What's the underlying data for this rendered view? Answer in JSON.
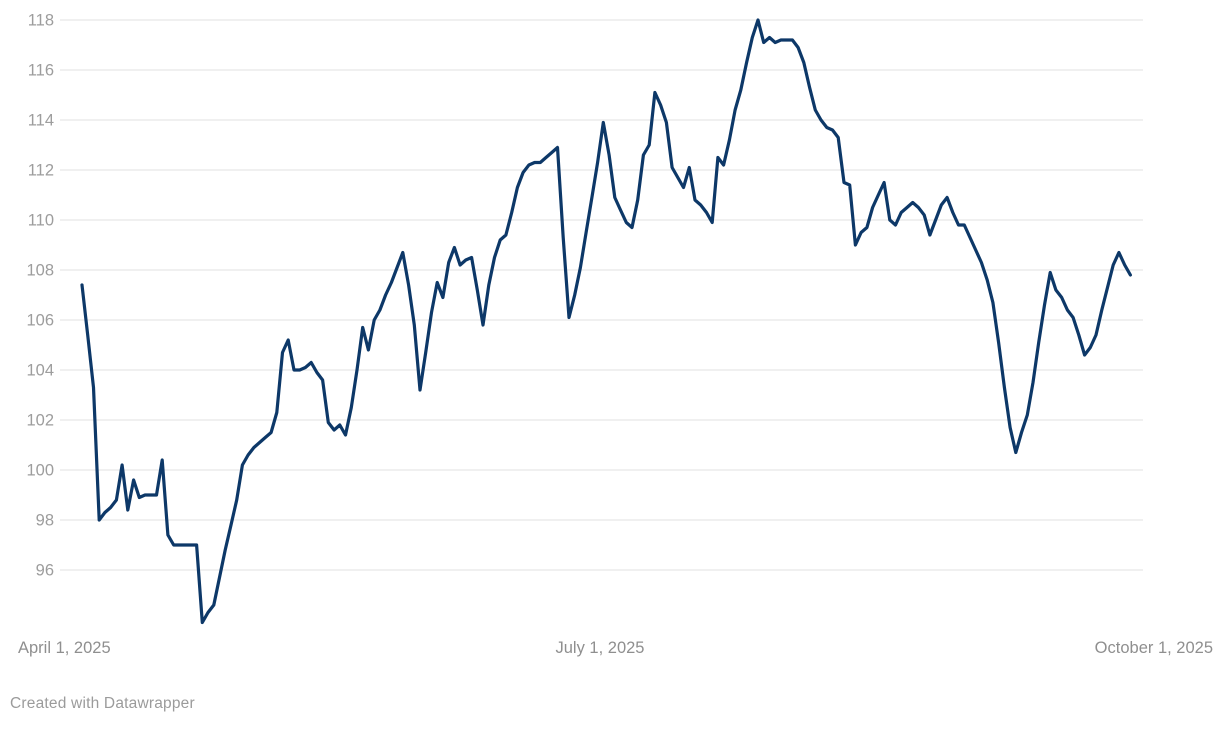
{
  "colors": {
    "line": "#0d3868",
    "grid": "#e7e7e7",
    "y_label": "#9d9d9d",
    "x_label": "#8f8f8f",
    "background": "#ffffff"
  },
  "footer": {
    "credit": "Created with Datawrapper"
  },
  "chart_data": {
    "type": "line",
    "title": "",
    "grid": true,
    "legend": "none",
    "x_axis": {
      "start_date": "2025-04-01",
      "end_date": "2025-10-01",
      "frequency": "daily",
      "tick_labels": [
        "April 1, 2025",
        "July 1, 2025",
        "October 1, 2025"
      ],
      "tick_dates": [
        "2025-04-01",
        "2025-07-01",
        "2025-10-01"
      ]
    },
    "y_axis": {
      "min": 96,
      "max": 118,
      "tick_step": 2,
      "ticks": [
        118,
        116,
        114,
        112,
        110,
        108,
        106,
        104,
        102,
        100,
        98,
        96
      ]
    },
    "series": [
      {
        "name": "index-value",
        "color": "#0d3868",
        "values": [
          107.4,
          105.4,
          103.3,
          98.0,
          98.3,
          98.5,
          98.8,
          100.2,
          98.4,
          99.6,
          98.9,
          99.0,
          99.0,
          99.0,
          100.4,
          97.4,
          97.0,
          97.0,
          97.0,
          97.0,
          97.0,
          93.9,
          94.3,
          94.6,
          95.7,
          96.8,
          97.8,
          98.8,
          100.2,
          100.6,
          100.9,
          101.1,
          101.3,
          101.5,
          102.3,
          104.7,
          105.2,
          104.0,
          104.0,
          104.1,
          104.3,
          103.9,
          103.6,
          101.9,
          101.6,
          101.8,
          101.4,
          102.5,
          104.0,
          105.7,
          104.8,
          106.0,
          106.4,
          107.0,
          107.5,
          108.1,
          108.7,
          107.4,
          105.8,
          103.2,
          104.7,
          106.3,
          107.5,
          106.9,
          108.3,
          108.9,
          108.2,
          108.4,
          108.5,
          107.2,
          105.8,
          107.4,
          108.5,
          109.2,
          109.4,
          110.3,
          111.3,
          111.9,
          112.2,
          112.3,
          112.3,
          112.5,
          112.7,
          112.9,
          109.3,
          106.1,
          107.0,
          108.1,
          109.5,
          110.9,
          112.3,
          113.9,
          112.6,
          110.9,
          110.4,
          109.9,
          109.7,
          110.8,
          112.6,
          113.0,
          115.1,
          114.6,
          113.9,
          112.1,
          111.7,
          111.3,
          112.1,
          110.8,
          110.6,
          110.3,
          109.9,
          112.5,
          112.2,
          113.2,
          114.4,
          115.2,
          116.3,
          117.3,
          118.0,
          117.1,
          117.3,
          117.1,
          117.2,
          117.2,
          117.2,
          116.9,
          116.3,
          115.3,
          114.4,
          114.0,
          113.7,
          113.6,
          113.3,
          111.5,
          111.4,
          109.0,
          109.5,
          109.7,
          110.5,
          111.0,
          111.5,
          110.0,
          109.8,
          110.3,
          110.5,
          110.7,
          110.5,
          110.2,
          109.4,
          110.0,
          110.6,
          110.9,
          110.3,
          109.8,
          109.8,
          109.3,
          108.8,
          108.3,
          107.6,
          106.7,
          105.1,
          103.3,
          101.7,
          100.7,
          101.5,
          102.2,
          103.5,
          105.1,
          106.6,
          107.9,
          107.2,
          106.9,
          106.4,
          106.1,
          105.4,
          104.6,
          104.9,
          105.4,
          106.4,
          107.3,
          108.2,
          108.7,
          108.2,
          107.8
        ]
      }
    ]
  }
}
